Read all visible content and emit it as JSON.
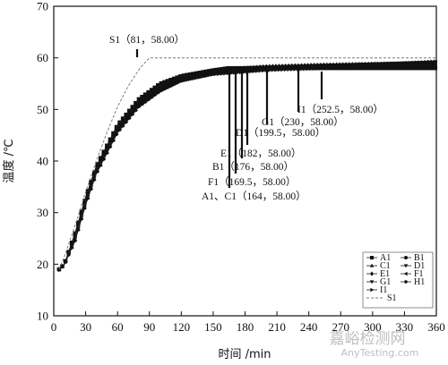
{
  "chart_data": {
    "type": "line",
    "title": "",
    "xlabel": "时间 /min",
    "ylabel": "温度 /℃",
    "xlim": [
      0,
      360
    ],
    "ylim": [
      10,
      70
    ],
    "xticks": [
      0,
      30,
      60,
      90,
      120,
      150,
      180,
      210,
      240,
      270,
      300,
      330,
      360
    ],
    "yticks": [
      10,
      20,
      30,
      40,
      50,
      60,
      70
    ],
    "grid": false,
    "legend_position": "bottom-right",
    "legend": [
      "A1",
      "B1",
      "C1",
      "D1",
      "E1",
      "F1",
      "G1",
      "H1",
      "I1",
      "S1"
    ],
    "series": [
      {
        "name": "A1",
        "x": [
          5,
          10,
          20,
          30,
          40,
          60,
          80,
          100,
          120,
          150,
          164,
          200,
          250,
          300,
          360
        ],
        "y": [
          19,
          20,
          26,
          33,
          39,
          47,
          52,
          55,
          56.5,
          57.6,
          58,
          58,
          58,
          58,
          58
        ]
      },
      {
        "name": "B1",
        "x": [
          5,
          10,
          20,
          30,
          40,
          60,
          80,
          100,
          120,
          150,
          176,
          200,
          250,
          300,
          360
        ],
        "y": [
          19,
          20,
          25.5,
          32.5,
          38.5,
          46.5,
          51.5,
          54.5,
          56.3,
          57.5,
          58,
          58.2,
          58.4,
          58.5,
          58.6
        ]
      },
      {
        "name": "C1",
        "x": [
          5,
          10,
          20,
          30,
          40,
          60,
          80,
          100,
          120,
          150,
          164,
          200,
          250,
          300,
          360
        ],
        "y": [
          19,
          20,
          25.8,
          32.8,
          38.8,
          46.8,
          51.8,
          54.8,
          56.4,
          57.6,
          58,
          58.1,
          58.3,
          58.4,
          58.5
        ]
      },
      {
        "name": "D1",
        "x": [
          5,
          10,
          20,
          30,
          40,
          60,
          80,
          100,
          120,
          150,
          199.5,
          250,
          300,
          360
        ],
        "y": [
          19,
          20,
          25,
          32,
          38,
          46,
          51,
          54,
          56,
          57.2,
          58,
          58.5,
          58.8,
          59
        ]
      },
      {
        "name": "E1",
        "x": [
          5,
          10,
          20,
          30,
          40,
          60,
          80,
          100,
          120,
          150,
          182,
          200,
          250,
          300,
          360
        ],
        "y": [
          19,
          20,
          25.3,
          32.3,
          38.3,
          46.3,
          51.3,
          54.3,
          56.1,
          57.4,
          58,
          58.3,
          58.6,
          58.8,
          59
        ]
      },
      {
        "name": "F1",
        "x": [
          5,
          10,
          20,
          30,
          40,
          60,
          80,
          100,
          120,
          150,
          169.5,
          200,
          250,
          300,
          360
        ],
        "y": [
          19,
          20,
          25.6,
          32.6,
          38.6,
          46.6,
          51.6,
          54.6,
          56.3,
          57.5,
          58,
          58.2,
          58.5,
          58.7,
          58.9
        ]
      },
      {
        "name": "G1",
        "x": [
          5,
          10,
          20,
          30,
          40,
          60,
          80,
          100,
          120,
          150,
          200,
          230,
          300,
          360
        ],
        "y": [
          19,
          20,
          24.8,
          31.8,
          37.8,
          45.8,
          50.8,
          53.8,
          55.8,
          57,
          57.8,
          58,
          58.8,
          59.2
        ]
      },
      {
        "name": "H1",
        "x": [
          5,
          10,
          20,
          30,
          40,
          60,
          80,
          100,
          120,
          150,
          200,
          250,
          300,
          360
        ],
        "y": [
          19,
          20,
          24.6,
          31.6,
          37.6,
          45.6,
          50.6,
          53.6,
          55.6,
          56.9,
          57.7,
          58.2,
          58.6,
          59
        ]
      },
      {
        "name": "I1",
        "x": [
          5,
          10,
          20,
          30,
          40,
          60,
          80,
          100,
          120,
          150,
          200,
          252.5,
          300,
          360
        ],
        "y": [
          19,
          20,
          24.5,
          31.5,
          37.5,
          45.5,
          50.5,
          53.5,
          55.5,
          56.8,
          57.6,
          58,
          58.6,
          59.3
        ]
      },
      {
        "name": "S1",
        "x": [
          5,
          10,
          20,
          30,
          40,
          50,
          60,
          70,
          81,
          90,
          120,
          200,
          300,
          360
        ],
        "y": [
          19,
          21.5,
          27.5,
          34,
          40,
          45.5,
          50.5,
          54.5,
          58,
          60,
          60,
          60,
          60,
          60
        ]
      }
    ],
    "annotations": [
      {
        "text": "S1（81，58.00）",
        "x": 81,
        "y": 58
      },
      {
        "text": "I1（252.5，58.00）",
        "x": 252.5,
        "y": 58
      },
      {
        "text": "G1（230，58.00）",
        "x": 230,
        "y": 58
      },
      {
        "text": "D1（199.5，58.00）",
        "x": 199.5,
        "y": 58
      },
      {
        "text": "E1（182，58.00）",
        "x": 182,
        "y": 58
      },
      {
        "text": "B1（176，58.00）",
        "x": 176,
        "y": 58
      },
      {
        "text": "F1（169.5，58.00）",
        "x": 169.5,
        "y": 58
      },
      {
        "text": "A1、C1（164，58.00）",
        "x": 164,
        "y": 58
      }
    ]
  },
  "watermark": {
    "line1": "嘉峪检测网",
    "line2": "AnyTesting.com",
    "color": "#8a8a8a"
  }
}
